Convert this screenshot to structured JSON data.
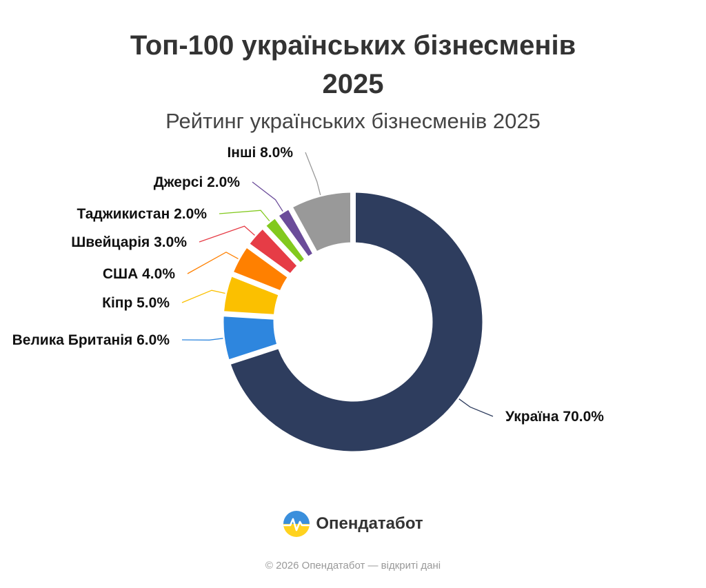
{
  "header": {
    "title_line1": "Топ-100 українських бізнесменів",
    "title_line2": "2025",
    "subtitle": "Рейтинг українських бізнесменів 2025"
  },
  "chart_data": {
    "type": "pie",
    "variant": "donut",
    "title": "Топ-100 українських бізнесменів 2025",
    "subtitle": "Рейтинг українських бізнесменів 2025",
    "unit": "%",
    "categories": [
      "Україна",
      "Велика Британія",
      "Кіпр",
      "США",
      "Швейцарія",
      "Таджикистан",
      "Джерсі",
      "Інші"
    ],
    "values": [
      70.0,
      6.0,
      5.0,
      4.0,
      3.0,
      2.0,
      2.0,
      8.0
    ],
    "labels": [
      "Україна 70.0%",
      "Велика Британія 6.0%",
      "Кіпр 5.0%",
      "США 4.0%",
      "Швейцарія 3.0%",
      "Таджикистан 2.0%",
      "Джерсі 2.0%",
      "Інші 8.0%"
    ],
    "colors": [
      "#2e3d5e",
      "#2e86de",
      "#fbc000",
      "#ff8000",
      "#e63c46",
      "#82c91e",
      "#6b4c9a",
      "#999999"
    ],
    "legend": "none",
    "grid": false
  },
  "brand": {
    "name": "Опендатабот",
    "logo_icon": "opendatabot-logo-icon"
  },
  "footer": {
    "text": "© 2026 Опендатабот — відкриті дані"
  }
}
